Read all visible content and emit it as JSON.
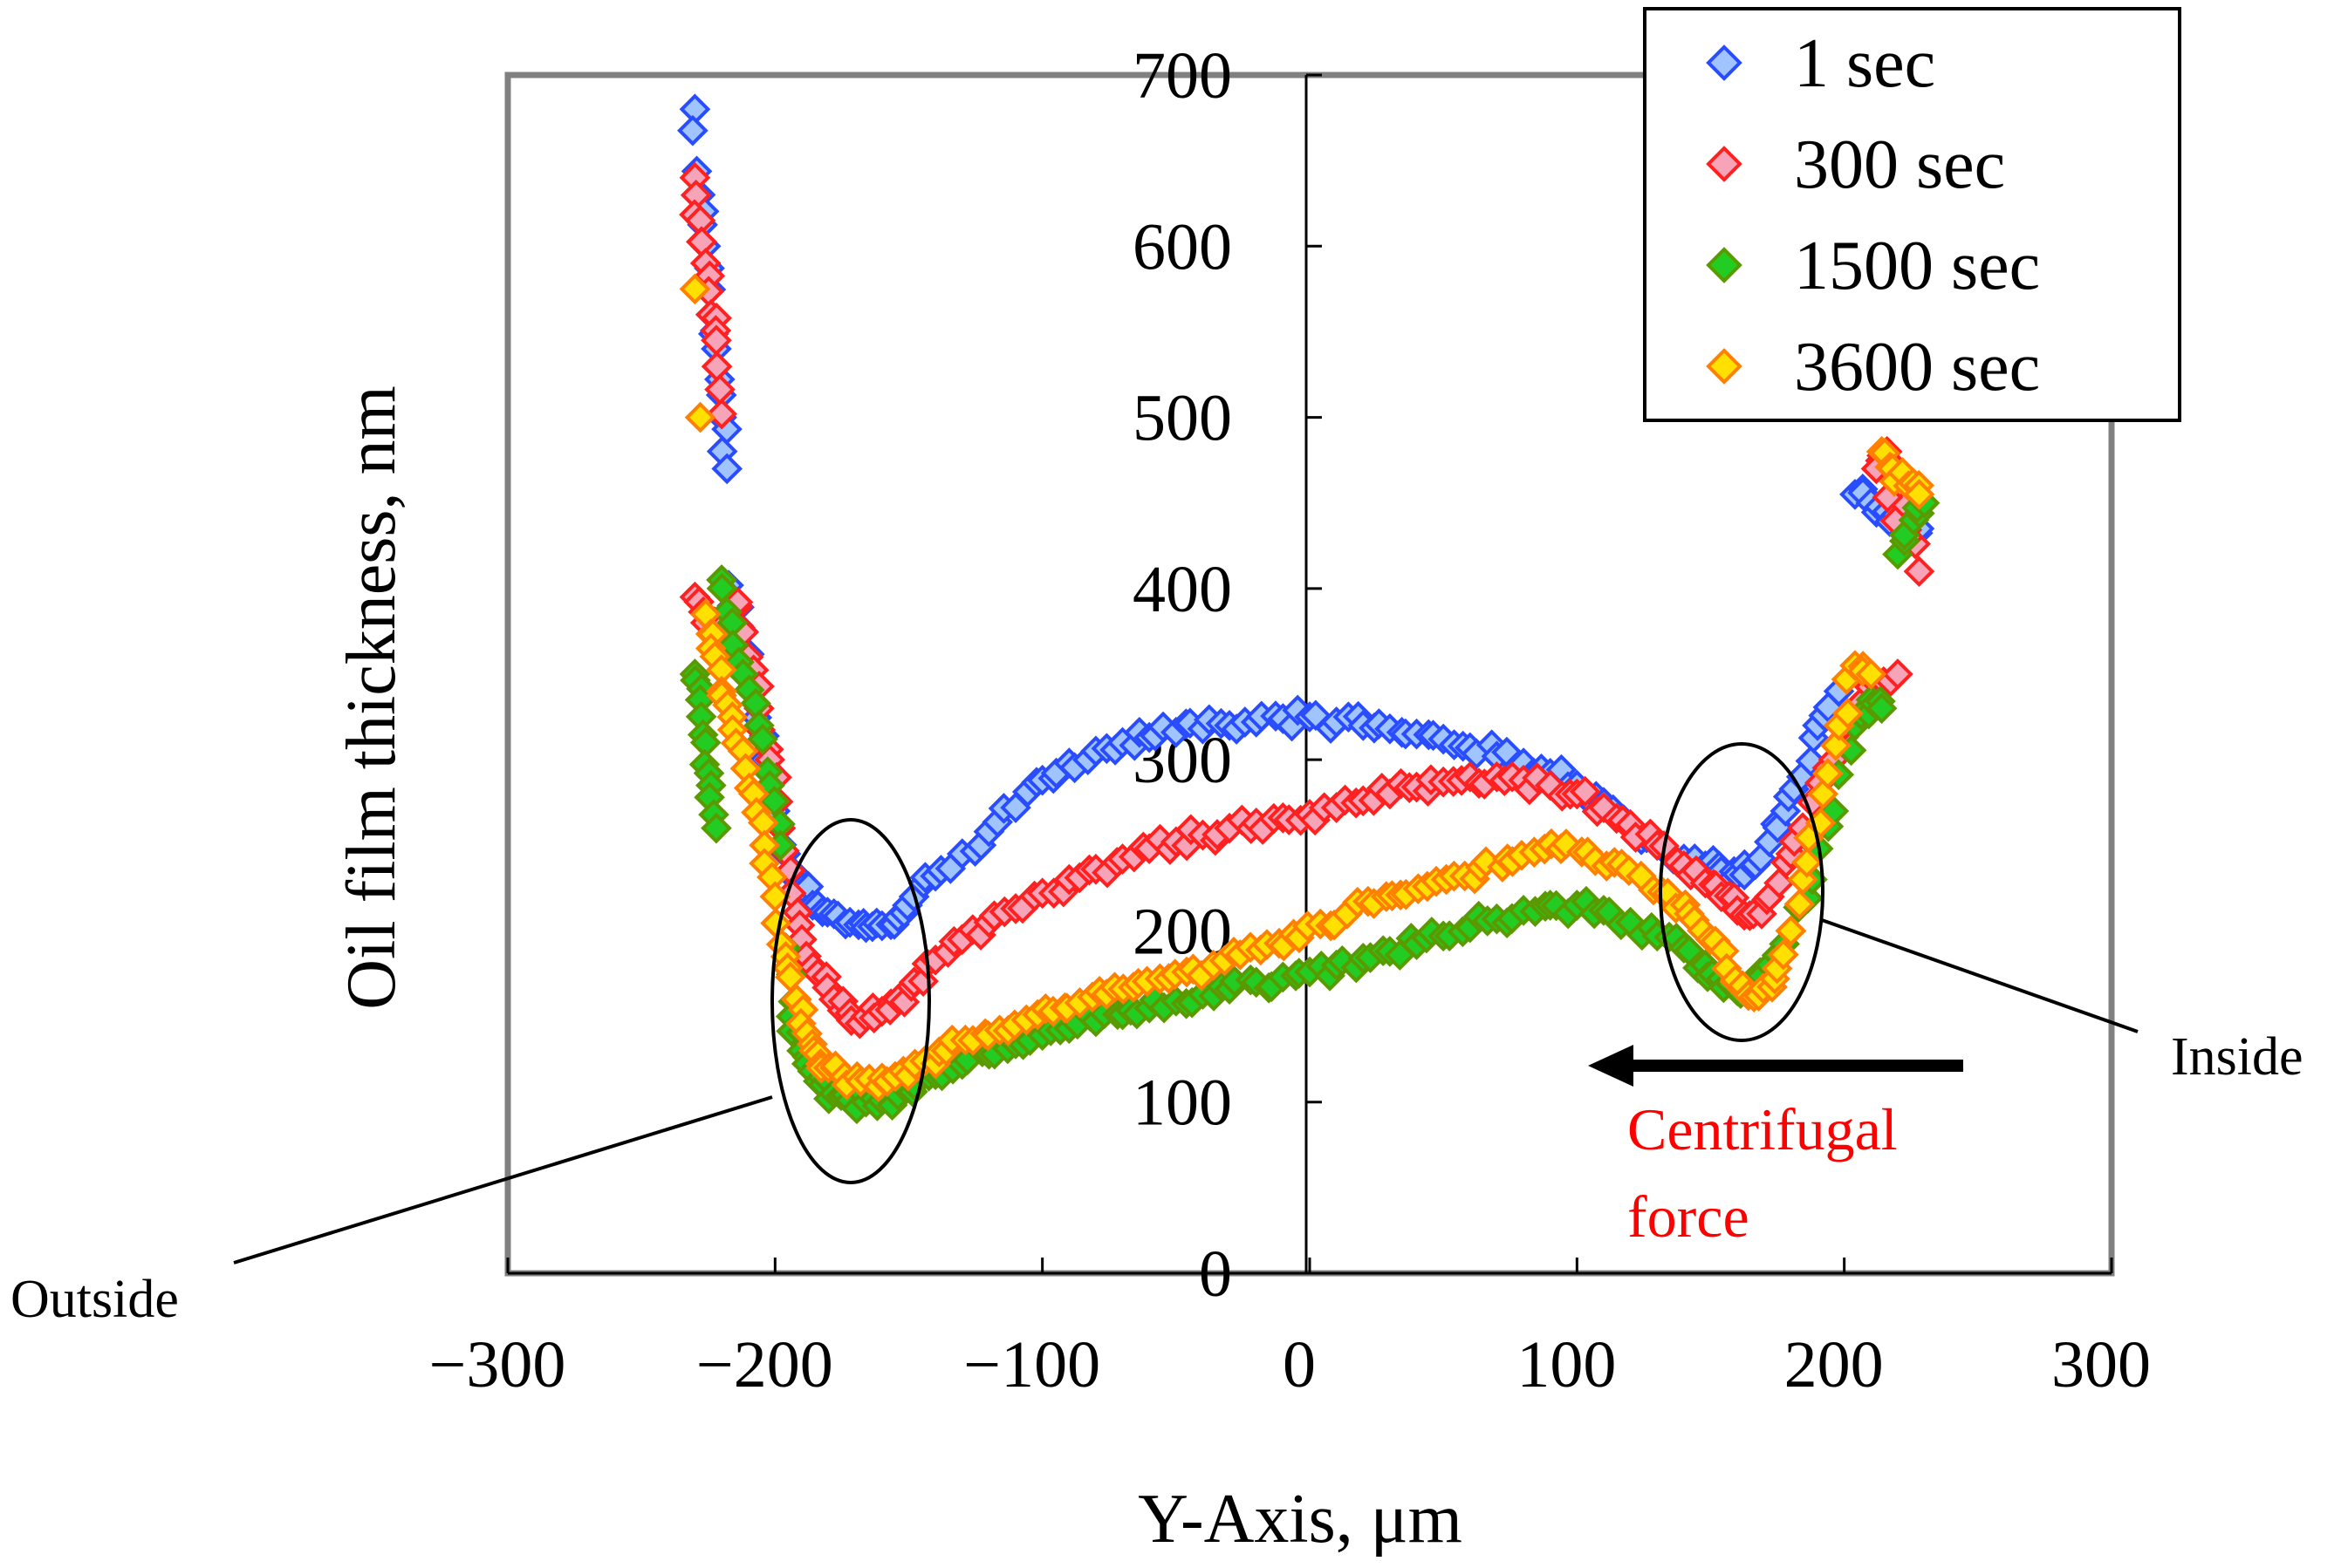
{
  "chart_data": {
    "type": "scatter",
    "title": "",
    "xlabel": "Y-Axis, μm",
    "ylabel": "Oil film thickness, nm",
    "xlim": [
      -300,
      300
    ],
    "ylim": [
      0,
      700
    ],
    "xticks": [
      -300,
      -200,
      -100,
      0,
      100,
      200,
      300
    ],
    "yticks": [
      0,
      100,
      200,
      300,
      400,
      500,
      600,
      700
    ],
    "xtick_labels": [
      "−300",
      "−200",
      "−100",
      "0",
      "100",
      "200",
      "300"
    ],
    "ytick_labels": [
      "0",
      "100",
      "200",
      "300",
      "400",
      "500",
      "600",
      "700"
    ],
    "grid": false,
    "legend_position": "top-right",
    "marker": "diamond",
    "series": [
      {
        "name": "1 sec",
        "color": "#2a4cff",
        "fill": "#9fc4ff",
        "anchors": [
          [
            -230,
            680
          ],
          [
            -228,
            630
          ],
          [
            -226,
            600
          ],
          [
            -224,
            560
          ],
          [
            -222,
            540
          ],
          [
            -220,
            500
          ],
          [
            -218,
            470
          ],
          [
            -220,
            405
          ],
          [
            -216,
            390
          ],
          [
            -212,
            375
          ],
          [
            -208,
            340
          ],
          [
            -204,
            300
          ],
          [
            -200,
            270
          ],
          [
            -196,
            245
          ],
          [
            -190,
            225
          ],
          [
            -184,
            215
          ],
          [
            -178,
            210
          ],
          [
            -172,
            205
          ],
          [
            -166,
            202
          ],
          [
            -160,
            203
          ],
          [
            -154,
            208
          ],
          [
            -148,
            220
          ],
          [
            -140,
            232
          ],
          [
            -130,
            245
          ],
          [
            -120,
            258
          ],
          [
            -110,
            272
          ],
          [
            -100,
            288
          ],
          [
            -90,
            298
          ],
          [
            -80,
            305
          ],
          [
            -70,
            310
          ],
          [
            -60,
            313
          ],
          [
            -50,
            316
          ],
          [
            -40,
            318
          ],
          [
            -30,
            320
          ],
          [
            -20,
            322
          ],
          [
            -10,
            324
          ],
          [
            0,
            325
          ],
          [
            10,
            322
          ],
          [
            20,
            320
          ],
          [
            30,
            318
          ],
          [
            40,
            315
          ],
          [
            50,
            312
          ],
          [
            60,
            307
          ],
          [
            70,
            302
          ],
          [
            80,
            298
          ],
          [
            90,
            292
          ],
          [
            100,
            285
          ],
          [
            110,
            275
          ],
          [
            120,
            262
          ],
          [
            130,
            250
          ],
          [
            140,
            242
          ],
          [
            148,
            238
          ],
          [
            154,
            235
          ],
          [
            160,
            233
          ],
          [
            166,
            238
          ],
          [
            172,
            252
          ],
          [
            178,
            270
          ],
          [
            184,
            290
          ],
          [
            190,
            320
          ],
          [
            198,
            340
          ],
          [
            204,
            455
          ],
          [
            210,
            450
          ],
          [
            216,
            445
          ],
          [
            222,
            440
          ],
          [
            228,
            435
          ]
        ]
      },
      {
        "name": "300 sec",
        "color": "#ff2020",
        "fill": "#f7a3b8",
        "anchors": [
          [
            -230,
            640
          ],
          [
            -228,
            615
          ],
          [
            -226,
            590
          ],
          [
            -224,
            560
          ],
          [
            -222,
            545
          ],
          [
            -220,
            502
          ],
          [
            -230,
            395
          ],
          [
            -226,
            380
          ],
          [
            -218,
            370
          ],
          [
            -214,
            392
          ],
          [
            -210,
            360
          ],
          [
            -206,
            330
          ],
          [
            -202,
            300
          ],
          [
            -198,
            260
          ],
          [
            -194,
            222
          ],
          [
            -190,
            195
          ],
          [
            -184,
            175
          ],
          [
            -178,
            160
          ],
          [
            -172,
            152
          ],
          [
            -166,
            150
          ],
          [
            -160,
            153
          ],
          [
            -154,
            160
          ],
          [
            -148,
            170
          ],
          [
            -140,
            183
          ],
          [
            -130,
            195
          ],
          [
            -120,
            205
          ],
          [
            -110,
            213
          ],
          [
            -100,
            222
          ],
          [
            -90,
            230
          ],
          [
            -80,
            236
          ],
          [
            -70,
            242
          ],
          [
            -60,
            248
          ],
          [
            -50,
            252
          ],
          [
            -40,
            256
          ],
          [
            -30,
            260
          ],
          [
            -20,
            263
          ],
          [
            -10,
            266
          ],
          [
            0,
            268
          ],
          [
            10,
            272
          ],
          [
            20,
            276
          ],
          [
            30,
            280
          ],
          [
            40,
            284
          ],
          [
            50,
            287
          ],
          [
            60,
            290
          ],
          [
            70,
            290
          ],
          [
            80,
            288
          ],
          [
            90,
            285
          ],
          [
            100,
            280
          ],
          [
            110,
            272
          ],
          [
            120,
            262
          ],
          [
            130,
            250
          ],
          [
            140,
            238
          ],
          [
            148,
            228
          ],
          [
            154,
            220
          ],
          [
            160,
            212
          ],
          [
            166,
            210
          ],
          [
            172,
            220
          ],
          [
            180,
            245
          ],
          [
            188,
            275
          ],
          [
            196,
            300
          ],
          [
            204,
            330
          ],
          [
            212,
            345
          ],
          [
            220,
            350
          ],
          [
            228,
            410
          ],
          [
            222,
            450
          ],
          [
            216,
            480
          ],
          [
            212,
            470
          ],
          [
            224,
            430
          ]
        ]
      },
      {
        "name": "1500 sec",
        "color": "#5a9a00",
        "fill": "#22cc22",
        "anchors": [
          [
            -230,
            350
          ],
          [
            -228,
            335
          ],
          [
            -226,
            310
          ],
          [
            -224,
            285
          ],
          [
            -222,
            260
          ],
          [
            -220,
            405
          ],
          [
            -216,
            380
          ],
          [
            -212,
            350
          ],
          [
            -206,
            320
          ],
          [
            -202,
            285
          ],
          [
            -198,
            250
          ],
          [
            -196,
            190
          ],
          [
            -194,
            150
          ],
          [
            -190,
            130
          ],
          [
            -186,
            118
          ],
          [
            -182,
            110
          ],
          [
            -178,
            105
          ],
          [
            -172,
            101
          ],
          [
            -166,
            100
          ],
          [
            -160,
            101
          ],
          [
            -154,
            104
          ],
          [
            -148,
            110
          ],
          [
            -140,
            116
          ],
          [
            -130,
            122
          ],
          [
            -120,
            128
          ],
          [
            -110,
            134
          ],
          [
            -100,
            139
          ],
          [
            -90,
            143
          ],
          [
            -80,
            147
          ],
          [
            -70,
            151
          ],
          [
            -60,
            155
          ],
          [
            -50,
            159
          ],
          [
            -40,
            163
          ],
          [
            -30,
            166
          ],
          [
            -20,
            170
          ],
          [
            -10,
            173
          ],
          [
            0,
            176
          ],
          [
            10,
            180
          ],
          [
            20,
            184
          ],
          [
            30,
            188
          ],
          [
            40,
            192
          ],
          [
            50,
            197
          ],
          [
            60,
            202
          ],
          [
            70,
            207
          ],
          [
            80,
            212
          ],
          [
            90,
            215
          ],
          [
            100,
            215
          ],
          [
            110,
            212
          ],
          [
            120,
            205
          ],
          [
            130,
            197
          ],
          [
            140,
            190
          ],
          [
            148,
            180
          ],
          [
            154,
            172
          ],
          [
            160,
            165
          ],
          [
            166,
            168
          ],
          [
            172,
            180
          ],
          [
            180,
            200
          ],
          [
            188,
            230
          ],
          [
            196,
            270
          ],
          [
            204,
            320
          ],
          [
            210,
            335
          ],
          [
            214,
            330
          ],
          [
            220,
            420
          ],
          [
            226,
            440
          ],
          [
            230,
            450
          ]
        ]
      },
      {
        "name": "3600 sec",
        "color": "#ff8000",
        "fill": "#ffe000",
        "anchors": [
          [
            -230,
            575
          ],
          [
            -228,
            500
          ],
          [
            -226,
            385
          ],
          [
            -224,
            365
          ],
          [
            -220,
            340
          ],
          [
            -216,
            325
          ],
          [
            -212,
            305
          ],
          [
            -208,
            280
          ],
          [
            -204,
            250
          ],
          [
            -200,
            220
          ],
          [
            -196,
            185
          ],
          [
            -192,
            160
          ],
          [
            -188,
            140
          ],
          [
            -184,
            128
          ],
          [
            -180,
            120
          ],
          [
            -174,
            115
          ],
          [
            -168,
            112
          ],
          [
            -160,
            114
          ],
          [
            -152,
            118
          ],
          [
            -144,
            124
          ],
          [
            -136,
            130
          ],
          [
            -126,
            136
          ],
          [
            -116,
            142
          ],
          [
            -106,
            148
          ],
          [
            -96,
            153
          ],
          [
            -86,
            158
          ],
          [
            -76,
            163
          ],
          [
            -66,
            167
          ],
          [
            -56,
            172
          ],
          [
            -46,
            176
          ],
          [
            -36,
            180
          ],
          [
            -26,
            186
          ],
          [
            -16,
            192
          ],
          [
            -6,
            198
          ],
          [
            4,
            204
          ],
          [
            14,
            210
          ],
          [
            24,
            216
          ],
          [
            34,
            221
          ],
          [
            44,
            226
          ],
          [
            54,
            232
          ],
          [
            64,
            237
          ],
          [
            74,
            242
          ],
          [
            84,
            246
          ],
          [
            94,
            248
          ],
          [
            104,
            246
          ],
          [
            114,
            240
          ],
          [
            124,
            232
          ],
          [
            134,
            222
          ],
          [
            142,
            210
          ],
          [
            150,
            195
          ],
          [
            156,
            178
          ],
          [
            162,
            168
          ],
          [
            168,
            162
          ],
          [
            174,
            172
          ],
          [
            180,
            200
          ],
          [
            186,
            240
          ],
          [
            192,
            280
          ],
          [
            198,
            320
          ],
          [
            204,
            355
          ],
          [
            210,
            350
          ],
          [
            214,
            480
          ],
          [
            218,
            470
          ],
          [
            224,
            460
          ],
          [
            228,
            455
          ]
        ]
      }
    ],
    "annotations": {
      "outside_label": "Outside",
      "inside_label": "Inside",
      "centrifugal_line1": "Centrifugal",
      "centrifugal_line2": "force"
    }
  }
}
